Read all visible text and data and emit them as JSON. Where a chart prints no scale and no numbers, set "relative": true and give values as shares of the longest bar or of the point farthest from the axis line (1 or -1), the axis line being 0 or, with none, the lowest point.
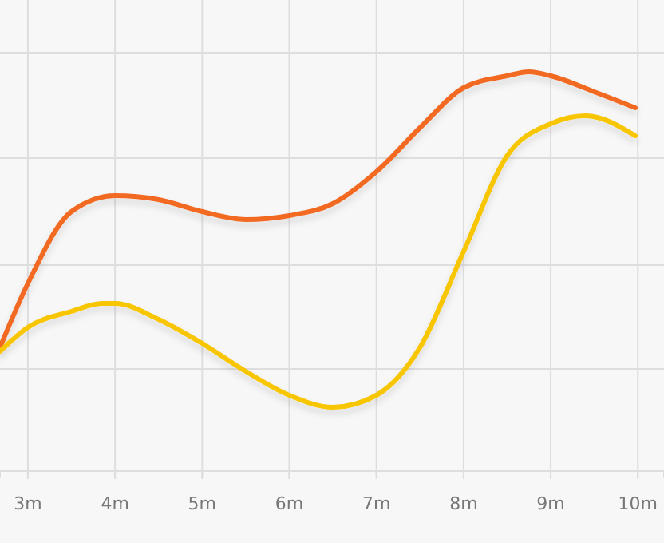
{
  "chart_data": {
    "type": "line",
    "relative": true,
    "grid": true,
    "xlim": [
      2.68,
      10.3
    ],
    "xticks": [
      {
        "value": 3,
        "label": "3m"
      },
      {
        "value": 4,
        "label": "4m"
      },
      {
        "value": 5,
        "label": "5m"
      },
      {
        "value": 6,
        "label": "6m"
      },
      {
        "value": 7,
        "label": "7m"
      },
      {
        "value": 8,
        "label": "8m"
      },
      {
        "value": 9,
        "label": "9m"
      },
      {
        "value": 10,
        "label": "10m"
      }
    ],
    "series": [
      {
        "color": "#f26a24",
        "x": [
          2.68,
          3,
          3.5,
          4,
          4.5,
          5,
          5.5,
          6,
          6.5,
          7,
          7.5,
          8,
          8.5,
          8.75,
          9,
          9.5,
          9.97
        ],
        "values": [
          0.31,
          0.47,
          0.65,
          0.69,
          0.68,
          0.65,
          0.63,
          0.64,
          0.67,
          0.75,
          0.86,
          0.96,
          0.99,
          1,
          0.99,
          0.95,
          0.91
        ]
      },
      {
        "color": "#f7c600",
        "x": [
          2.68,
          3,
          3.5,
          3.85,
          4,
          4.5,
          5,
          5.5,
          6,
          6.5,
          7,
          7.5,
          8,
          8.5,
          9,
          9.4,
          9.97
        ],
        "values": [
          0.3,
          0.36,
          0.4,
          0.42,
          0.42,
          0.38,
          0.32,
          0.25,
          0.19,
          0.16,
          0.19,
          0.31,
          0.55,
          0.79,
          0.87,
          0.89,
          0.84
        ]
      }
    ]
  }
}
